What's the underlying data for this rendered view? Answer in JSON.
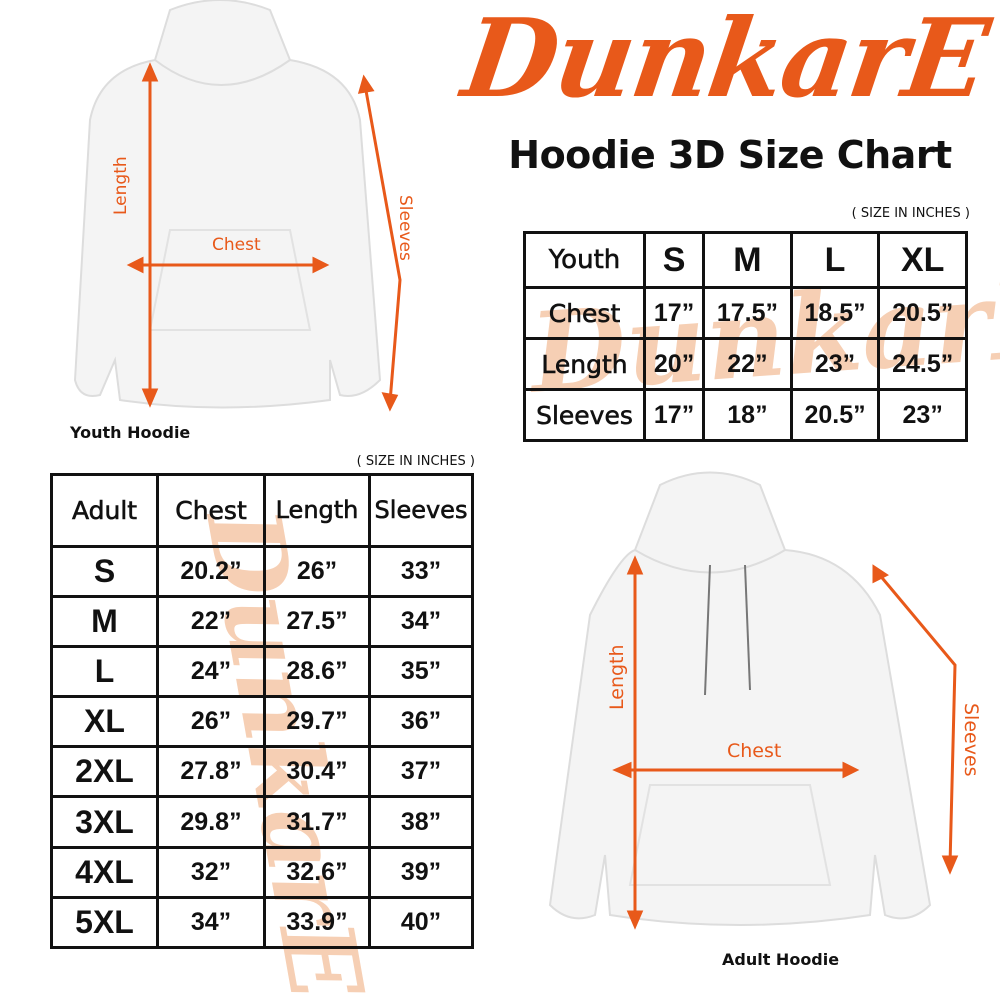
{
  "brand": {
    "logo_text": "DunkarE",
    "accent_color": "#e8591a"
  },
  "title": "Hoodie 3D Size Chart",
  "youth_chart": {
    "unit_note": "( SIZE IN INCHES )",
    "corner": "Youth",
    "sizes": [
      "S",
      "M",
      "L",
      "XL"
    ],
    "rows": [
      {
        "label": "Chest",
        "values": [
          "17”",
          "17.5”",
          "18.5”",
          "20.5”"
        ]
      },
      {
        "label": "Length",
        "values": [
          "20”",
          "22”",
          "23”",
          "24.5”"
        ]
      },
      {
        "label": "Sleeves",
        "values": [
          "17”",
          "18”",
          "20.5”",
          "23”"
        ]
      }
    ]
  },
  "adult_chart": {
    "unit_note": "( SIZE IN INCHES )",
    "headers": [
      "Adult",
      "Chest",
      "Length",
      "Sleeves"
    ],
    "rows": [
      [
        "S",
        "20.2”",
        "26”",
        "33”"
      ],
      [
        "M",
        "22”",
        "27.5”",
        "34”"
      ],
      [
        "L",
        "24”",
        "28.6”",
        "35”"
      ],
      [
        "XL",
        "26”",
        "29.7”",
        "36”"
      ],
      [
        "2XL",
        "27.8”",
        "30.4”",
        "37”"
      ],
      [
        "3XL",
        "29.8”",
        "31.7”",
        "38”"
      ],
      [
        "4XL",
        "32”",
        "32.6”",
        "39”"
      ],
      [
        "5XL",
        "34”",
        "33.9”",
        "40”"
      ]
    ]
  },
  "youth_hoodie": {
    "caption": "Youth Hoodie",
    "labels": {
      "length": "Length",
      "chest": "Chest",
      "sleeves": "Sleeves"
    }
  },
  "adult_hoodie": {
    "caption": "Adult Hoodie",
    "labels": {
      "length": "Length",
      "chest": "Chest",
      "sleeves": "Sleeves"
    }
  }
}
